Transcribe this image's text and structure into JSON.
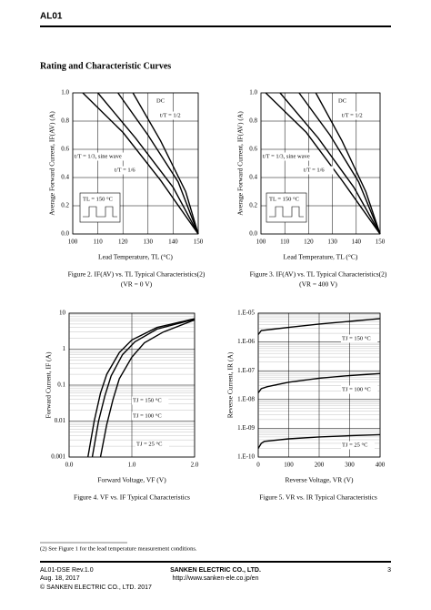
{
  "header": {
    "title": "AL01"
  },
  "section_title": "Rating and Characteristic Curves",
  "chart_data": [
    {
      "type": "line",
      "xlabel": "Lead Temperature, TL (°C)",
      "ylabel": "Average Forward Current, IF(AV) (A)",
      "caption": "Figure 2.    IF(AV) vs. TL Typical Characteristics(2)",
      "caption_sub": "(VR = 0 V)",
      "annotation": "TL = 150 °C",
      "xlim": [
        100,
        150
      ],
      "xticks": [
        100,
        110,
        120,
        130,
        140,
        150
      ],
      "ylim": [
        0,
        1
      ],
      "yticks": [
        {
          "value": 0,
          "label": "0.0"
        },
        0.2,
        0.4,
        0.6,
        0.8,
        {
          "value": 1,
          "label": "1.0"
        }
      ],
      "log_y": false,
      "series": [
        {
          "name": "DC",
          "color": "#000000",
          "x": [
            124,
            135,
            145,
            150
          ],
          "values": [
            1.0,
            0.66,
            0.3,
            0
          ]
        },
        {
          "name": "t/T = 1/2",
          "color": "#000000",
          "x": [
            118,
            130,
            142,
            150
          ],
          "values": [
            1.0,
            0.7,
            0.37,
            0
          ]
        },
        {
          "name": "t/T = 1/3, sine wave",
          "color": "#000000",
          "x": [
            110,
            125,
            140,
            150
          ],
          "values": [
            1.0,
            0.68,
            0.33,
            0
          ]
        },
        {
          "name": "t/T = 1/6",
          "color": "#000000",
          "x": [
            104,
            120,
            135,
            150
          ],
          "values": [
            1.0,
            0.72,
            0.38,
            0
          ]
        }
      ]
    },
    {
      "type": "line",
      "xlabel": "Lead Temperature, TL (°C)",
      "ylabel": "Average Forward Current, IF(AV) (A)",
      "caption": "Figure 3.    IF(AV) vs. TL Typical Characteristics(2)",
      "caption_sub": "(VR = 400 V)",
      "annotation": "TL = 150 °C",
      "xlim": [
        100,
        150
      ],
      "xticks": [
        100,
        110,
        120,
        130,
        140,
        150
      ],
      "ylim": [
        0,
        1
      ],
      "yticks": [
        {
          "value": 0,
          "label": "0.0"
        },
        0.2,
        0.4,
        0.6,
        0.8,
        {
          "value": 1,
          "label": "1.0"
        }
      ],
      "log_y": false,
      "series": [
        {
          "name": "DC",
          "color": "#000000",
          "x": [
            123,
            134,
            144,
            150
          ],
          "values": [
            1.0,
            0.66,
            0.3,
            0
          ]
        },
        {
          "name": "t/T = 1/2",
          "color": "#000000",
          "x": [
            116,
            129,
            141,
            150
          ],
          "values": [
            1.0,
            0.7,
            0.37,
            0
          ]
        },
        {
          "name": "t/T = 1/3, sine wave",
          "color": "#000000",
          "x": [
            108,
            124,
            139,
            150
          ],
          "values": [
            1.0,
            0.68,
            0.33,
            0
          ]
        },
        {
          "name": "t/T = 1/6",
          "color": "#000000",
          "x": [
            102,
            119,
            134,
            150
          ],
          "values": [
            1.0,
            0.72,
            0.38,
            0
          ]
        }
      ]
    },
    {
      "type": "line",
      "xlabel": "Forward Voltage, VF (V)",
      "ylabel": "Forward Current, IF (A)",
      "caption": "Figure 4.    VF vs. IF Typical Characteristics",
      "caption_sub": null,
      "annotation": null,
      "xlim": [
        0,
        2
      ],
      "xticks": [
        {
          "value": 0,
          "label": "0.0"
        },
        {
          "value": 1,
          "label": "1.0"
        },
        {
          "value": 2,
          "label": "2.0"
        }
      ],
      "ylim": [
        0.001,
        10
      ],
      "yticks": [
        0.001,
        0.01,
        0.1,
        1,
        10
      ],
      "log_y": true,
      "series": [
        {
          "name": "TJ = 150 °C",
          "color": "#000000",
          "x": [
            0.3,
            0.4,
            0.5,
            0.6,
            0.8,
            1.0,
            1.4,
            2.0
          ],
          "values": [
            0.001,
            0.01,
            0.06,
            0.2,
            0.8,
            1.8,
            4,
            7
          ]
        },
        {
          "name": "TJ = 100 °C",
          "color": "#000000",
          "x": [
            0.37,
            0.47,
            0.57,
            0.67,
            0.85,
            1.05,
            1.4,
            2.0
          ],
          "values": [
            0.001,
            0.01,
            0.05,
            0.18,
            0.7,
            1.6,
            3.6,
            6.8
          ]
        },
        {
          "name": "TJ = 25 °C",
          "color": "#000000",
          "x": [
            0.5,
            0.6,
            0.7,
            0.8,
            1.0,
            1.2,
            1.5,
            2.0
          ],
          "values": [
            0.001,
            0.008,
            0.04,
            0.15,
            0.6,
            1.5,
            3,
            6.5
          ]
        }
      ]
    },
    {
      "type": "line",
      "xlabel": "Reverse Voltage, VR (V)",
      "ylabel": "Reverse Current, IR (A)",
      "caption": "Figure 5.    VR vs. IR Typical Characteristics",
      "caption_sub": null,
      "annotation": null,
      "xlim": [
        0,
        400
      ],
      "xticks": [
        0,
        100,
        200,
        300,
        400
      ],
      "ylim": [
        1e-10,
        1e-05
      ],
      "yticks": [
        {
          "value": 1e-10,
          "label": "1.E-10"
        },
        {
          "value": 1e-09,
          "label": "1.E-09"
        },
        {
          "value": 1e-08,
          "label": "1.E-08"
        },
        {
          "value": 1e-07,
          "label": "1.E-07"
        },
        {
          "value": 1e-06,
          "label": "1.E-06"
        },
        {
          "value": 1e-05,
          "label": "1.E-05"
        }
      ],
      "log_y": true,
      "series": [
        {
          "name": "TJ = 150 °C",
          "color": "#000000",
          "x": [
            0,
            10,
            50,
            100,
            200,
            300,
            400
          ],
          "values": [
            1.8e-06,
            2.5e-06,
            2.8e-06,
            3.2e-06,
            4.2e-06,
            5.2e-06,
            6.5e-06
          ]
        },
        {
          "name": "TJ = 100 °C",
          "color": "#000000",
          "x": [
            0,
            10,
            30,
            100,
            200,
            300,
            400
          ],
          "values": [
            1.7e-08,
            2.4e-08,
            2.8e-08,
            4e-08,
            5.5e-08,
            6.8e-08,
            8e-08
          ]
        },
        {
          "name": "TJ = 25 °C",
          "color": "#000000",
          "x": [
            0,
            10,
            20,
            100,
            200,
            300,
            400
          ],
          "values": [
            2e-10,
            3e-10,
            3.5e-10,
            4.3e-10,
            5e-10,
            5.5e-10,
            6e-10
          ]
        }
      ]
    }
  ],
  "footnote": "(2) See Figure 1 for the lead temperature measurement conditions.",
  "footer": {
    "doc": "AL01-DSE Rev.1.0",
    "date": "Aug. 18, 2017",
    "copyright": "© SANKEN ELECTRIC CO., LTD. 2017",
    "company": "SANKEN ELECTRIC CO., LTD.",
    "url": "http://www.sanken-ele.co.jp/en",
    "page": "3"
  }
}
